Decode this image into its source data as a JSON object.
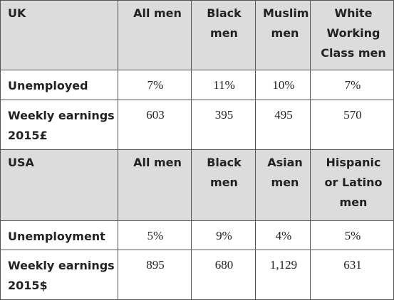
{
  "sections": [
    {
      "header": [
        "UK",
        "All men",
        "Black men",
        "Muslim men",
        "White Working Class men"
      ],
      "rows": [
        [
          "Unemployed",
          "7%",
          "11%",
          "10%",
          "7%"
        ],
        [
          "Weekly earnings 2015£",
          "603",
          "395",
          "495",
          "570"
        ]
      ]
    },
    {
      "header": [
        "USA",
        "All men",
        "Black men",
        "Asian men",
        "Hispanic or Latino men"
      ],
      "rows": [
        [
          "Unemployment",
          "5%",
          "9%",
          "4%",
          "5%"
        ],
        [
          "Weekly earnings 2015$",
          "895",
          "680",
          "1,129",
          "631"
        ]
      ]
    }
  ]
}
